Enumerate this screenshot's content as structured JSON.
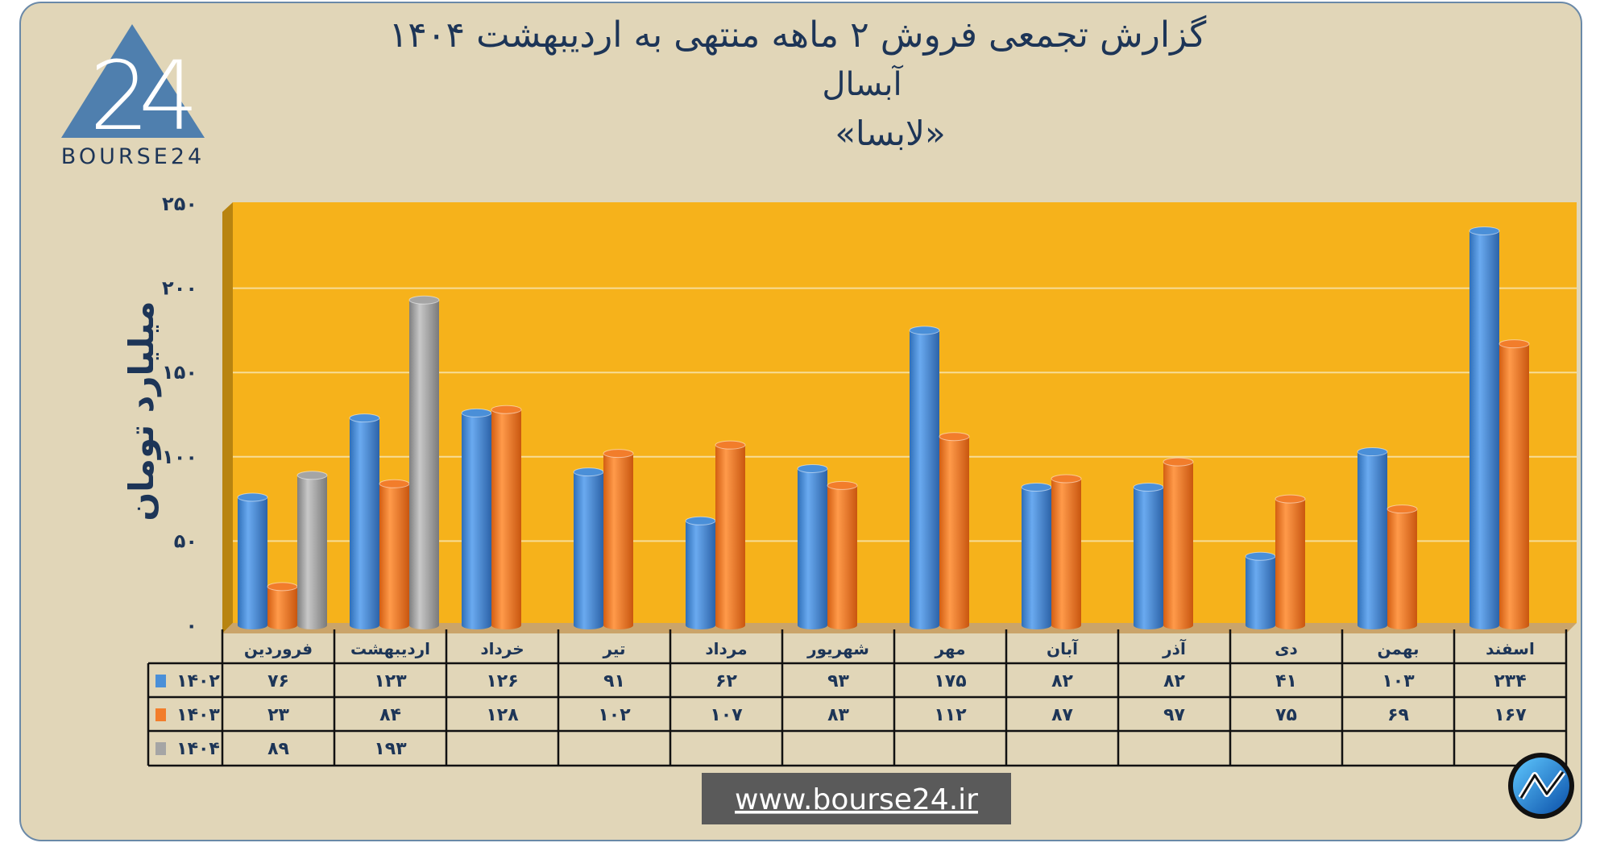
{
  "header": {
    "title": "گزارش تجمعی فروش ۲ ماهه منتهی به اردیبهشت ۱۴۰۴",
    "company": "آبسال",
    "symbol": "«لابسا»"
  },
  "logo": {
    "text": "BOURSE24",
    "mark": "24"
  },
  "website": "www.bourse24.ir",
  "colors": {
    "background": "#e1d6b8",
    "plot": "#f6b21b",
    "series_1402": "#4a8fd8",
    "series_1403": "#f27d2b",
    "series_1404": "#a5a5a5",
    "text": "#1d3557"
  },
  "chart_data": {
    "type": "bar",
    "title": "گزارش تجمعی فروش ۲ ماهه منتهی به اردیبهشت ۱۴۰۴",
    "ylabel": "میلیارد تومان",
    "ylim": [
      0,
      250
    ],
    "yticks": [
      0,
      50,
      100,
      150,
      200,
      250
    ],
    "ytick_labels": [
      "۰",
      "۵۰",
      "۱۰۰",
      "۱۵۰",
      "۲۰۰",
      "۲۵۰"
    ],
    "grid": true,
    "categories": [
      "فروردین",
      "اردیبهشت",
      "خرداد",
      "تیر",
      "مرداد",
      "شهریور",
      "مهر",
      "آبان",
      "آذر",
      "دی",
      "بهمن",
      "اسفند"
    ],
    "series": [
      {
        "name": "۱۴۰۲",
        "values": [
          76,
          123,
          126,
          91,
          62,
          93,
          175,
          82,
          82,
          41,
          103,
          234
        ],
        "labels": [
          "۷۶",
          "۱۲۳",
          "۱۲۶",
          "۹۱",
          "۶۲",
          "۹۳",
          "۱۷۵",
          "۸۲",
          "۸۲",
          "۴۱",
          "۱۰۳",
          "۲۳۴"
        ]
      },
      {
        "name": "۱۴۰۳",
        "values": [
          23,
          84,
          128,
          102,
          107,
          83,
          112,
          87,
          97,
          75,
          69,
          167
        ],
        "labels": [
          "۲۳",
          "۸۴",
          "۱۲۸",
          "۱۰۲",
          "۱۰۷",
          "۸۳",
          "۱۱۲",
          "۸۷",
          "۹۷",
          "۷۵",
          "۶۹",
          "۱۶۷"
        ]
      },
      {
        "name": "۱۴۰۴",
        "values": [
          89,
          193,
          null,
          null,
          null,
          null,
          null,
          null,
          null,
          null,
          null,
          null
        ],
        "labels": [
          "۸۹",
          "۱۹۳",
          "",
          "",
          "",
          "",
          "",
          "",
          "",
          "",
          "",
          ""
        ]
      }
    ],
    "legend": "data-table-below"
  }
}
